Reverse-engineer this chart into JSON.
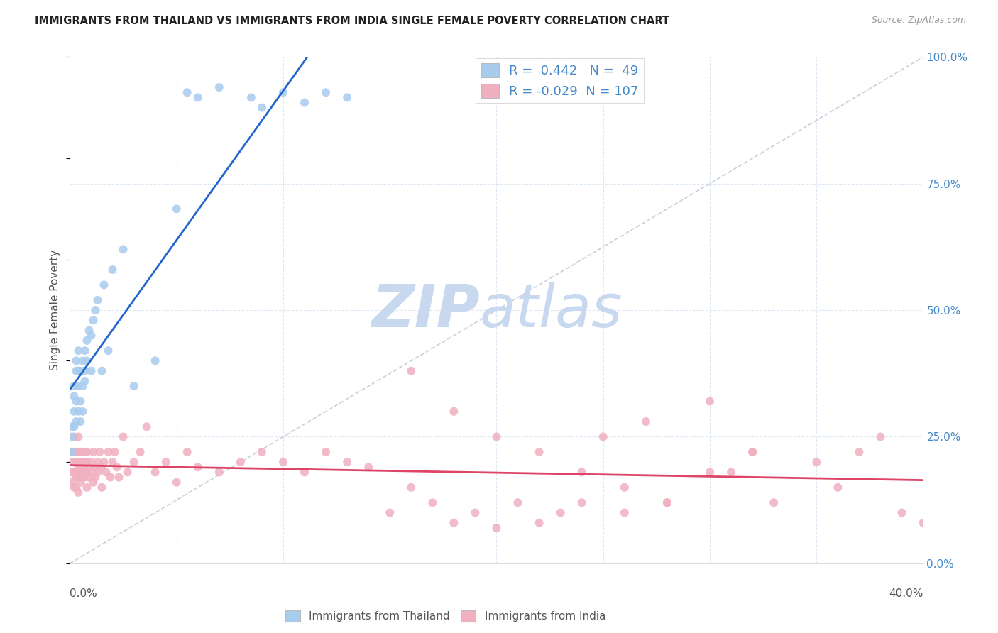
{
  "title": "IMMIGRANTS FROM THAILAND VS IMMIGRANTS FROM INDIA SINGLE FEMALE POVERTY CORRELATION CHART",
  "source": "Source: ZipAtlas.com",
  "ylabel": "Single Female Poverty",
  "right_yticks": [
    0.0,
    0.25,
    0.5,
    0.75,
    1.0
  ],
  "right_yticklabels": [
    "0.0%",
    "25.0%",
    "50.0%",
    "75.0%",
    "100.0%"
  ],
  "xlim": [
    0.0,
    0.4
  ],
  "ylim": [
    0.0,
    1.0
  ],
  "thailand_R": 0.442,
  "thailand_N": 49,
  "india_R": -0.029,
  "india_N": 107,
  "thailand_color": "#a8ccee",
  "india_color": "#f0b0c0",
  "thailand_line_color": "#2266cc",
  "india_line_color": "#dd4466",
  "identity_line_color": "#c0c8d4",
  "legend_label_thailand": "Immigrants from Thailand",
  "legend_label_india": "Immigrants from India",
  "watermark_zip_color": "#c8d8ef",
  "watermark_atlas_color": "#c8d8ef",
  "background_color": "#ffffff",
  "grid_color": "#dde8f4",
  "title_color": "#222222",
  "right_axis_color": "#4488cc",
  "label_color": "#555555",
  "thailand_points_x": [
    0.001,
    0.001,
    0.001,
    0.002,
    0.002,
    0.002,
    0.002,
    0.003,
    0.003,
    0.003,
    0.003,
    0.004,
    0.004,
    0.004,
    0.004,
    0.005,
    0.005,
    0.005,
    0.006,
    0.006,
    0.006,
    0.007,
    0.007,
    0.007,
    0.008,
    0.008,
    0.009,
    0.01,
    0.01,
    0.011,
    0.012,
    0.013,
    0.015,
    0.016,
    0.018,
    0.02,
    0.025,
    0.03,
    0.04,
    0.05,
    0.055,
    0.06,
    0.07,
    0.085,
    0.09,
    0.1,
    0.11,
    0.12,
    0.13
  ],
  "thailand_points_y": [
    0.22,
    0.25,
    0.27,
    0.3,
    0.33,
    0.27,
    0.35,
    0.32,
    0.38,
    0.28,
    0.4,
    0.35,
    0.38,
    0.3,
    0.42,
    0.38,
    0.32,
    0.28,
    0.4,
    0.35,
    0.3,
    0.42,
    0.38,
    0.36,
    0.44,
    0.4,
    0.46,
    0.45,
    0.38,
    0.48,
    0.5,
    0.52,
    0.38,
    0.55,
    0.42,
    0.58,
    0.62,
    0.35,
    0.4,
    0.7,
    0.93,
    0.92,
    0.94,
    0.92,
    0.9,
    0.93,
    0.91,
    0.93,
    0.92
  ],
  "india_points_x": [
    0.001,
    0.001,
    0.001,
    0.001,
    0.002,
    0.002,
    0.002,
    0.002,
    0.002,
    0.003,
    0.003,
    0.003,
    0.003,
    0.003,
    0.004,
    0.004,
    0.004,
    0.004,
    0.004,
    0.005,
    0.005,
    0.005,
    0.005,
    0.006,
    0.006,
    0.006,
    0.006,
    0.007,
    0.007,
    0.007,
    0.007,
    0.008,
    0.008,
    0.008,
    0.008,
    0.009,
    0.009,
    0.01,
    0.01,
    0.011,
    0.011,
    0.012,
    0.012,
    0.013,
    0.013,
    0.014,
    0.015,
    0.015,
    0.016,
    0.017,
    0.018,
    0.019,
    0.02,
    0.021,
    0.022,
    0.023,
    0.025,
    0.027,
    0.03,
    0.033,
    0.036,
    0.04,
    0.045,
    0.05,
    0.055,
    0.06,
    0.07,
    0.08,
    0.09,
    0.1,
    0.11,
    0.12,
    0.13,
    0.14,
    0.15,
    0.16,
    0.17,
    0.18,
    0.19,
    0.2,
    0.21,
    0.22,
    0.23,
    0.24,
    0.25,
    0.26,
    0.27,
    0.28,
    0.3,
    0.31,
    0.32,
    0.33,
    0.35,
    0.36,
    0.37,
    0.38,
    0.39,
    0.4,
    0.16,
    0.18,
    0.2,
    0.22,
    0.24,
    0.26,
    0.28,
    0.3,
    0.32
  ],
  "india_points_y": [
    0.18,
    0.2,
    0.22,
    0.16,
    0.18,
    0.22,
    0.15,
    0.25,
    0.2,
    0.18,
    0.22,
    0.17,
    0.2,
    0.15,
    0.22,
    0.17,
    0.19,
    0.14,
    0.25,
    0.2,
    0.18,
    0.22,
    0.16,
    0.19,
    0.22,
    0.17,
    0.2,
    0.2,
    0.17,
    0.22,
    0.18,
    0.2,
    0.18,
    0.15,
    0.22,
    0.19,
    0.17,
    0.2,
    0.18,
    0.22,
    0.16,
    0.19,
    0.17,
    0.2,
    0.18,
    0.22,
    0.19,
    0.15,
    0.2,
    0.18,
    0.22,
    0.17,
    0.2,
    0.22,
    0.19,
    0.17,
    0.25,
    0.18,
    0.2,
    0.22,
    0.27,
    0.18,
    0.2,
    0.16,
    0.22,
    0.19,
    0.18,
    0.2,
    0.22,
    0.2,
    0.18,
    0.22,
    0.2,
    0.19,
    0.1,
    0.15,
    0.12,
    0.08,
    0.1,
    0.07,
    0.12,
    0.08,
    0.1,
    0.12,
    0.25,
    0.1,
    0.28,
    0.12,
    0.32,
    0.18,
    0.22,
    0.12,
    0.2,
    0.15,
    0.22,
    0.25,
    0.1,
    0.08,
    0.38,
    0.3,
    0.25,
    0.22,
    0.18,
    0.15,
    0.12,
    0.18,
    0.22
  ]
}
